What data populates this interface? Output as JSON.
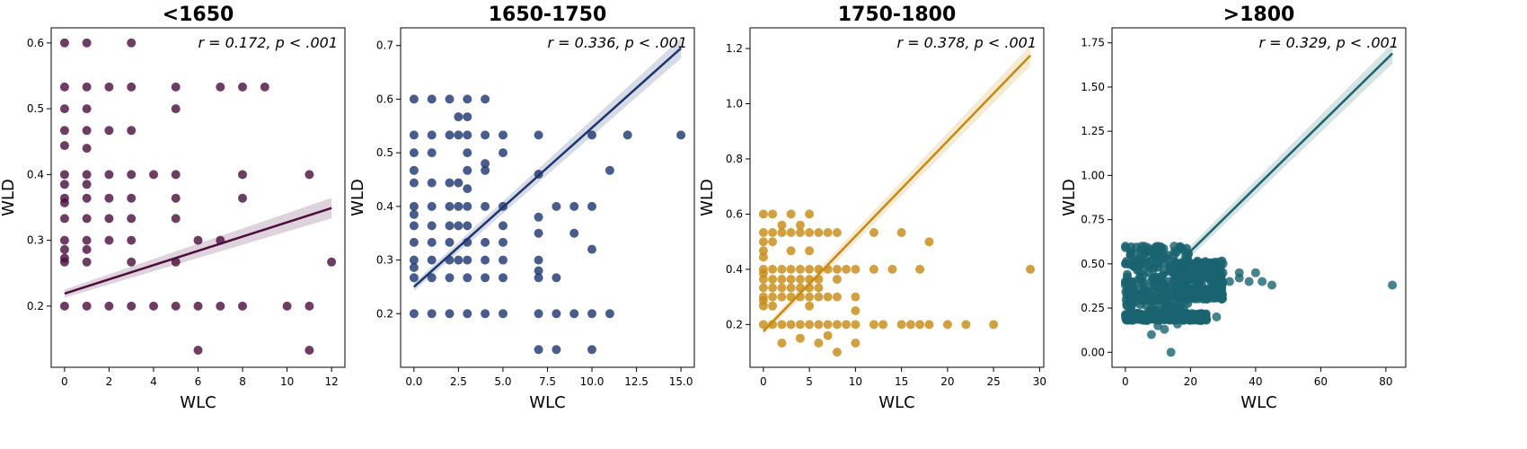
{
  "chart_data": [
    {
      "type": "scatter",
      "title": "<1650",
      "xlabel": "WLC",
      "ylabel": "WLD",
      "annotation": "r = 0.172, p < .001",
      "color": "#4a0d3c",
      "xlim": [
        -0.6,
        12.6
      ],
      "ylim": [
        0.107,
        0.623
      ],
      "xticks": [
        0,
        2,
        4,
        6,
        8,
        10,
        12
      ],
      "xtick_labels": [
        "0",
        "2",
        "4",
        "6",
        "8",
        "10",
        "12"
      ],
      "yticks": [
        0.2,
        0.3,
        0.4,
        0.5,
        0.6
      ],
      "ytick_labels": [
        "0.2",
        "0.3",
        "0.4",
        "0.5",
        "0.6"
      ],
      "regression": {
        "x": [
          0,
          12
        ],
        "y": [
          0.219,
          0.349
        ]
      },
      "points": [
        [
          0,
          0.6
        ],
        [
          0,
          0.533
        ],
        [
          0,
          0.5
        ],
        [
          0,
          0.467
        ],
        [
          0,
          0.444
        ],
        [
          0,
          0.4
        ],
        [
          0,
          0.385
        ],
        [
          0,
          0.364
        ],
        [
          0,
          0.357
        ],
        [
          0,
          0.333
        ],
        [
          0,
          0.3
        ],
        [
          0,
          0.286
        ],
        [
          0,
          0.273
        ],
        [
          0,
          0.267
        ],
        [
          0,
          0.2
        ],
        [
          1,
          0.6
        ],
        [
          1,
          0.533
        ],
        [
          1,
          0.5
        ],
        [
          1,
          0.467
        ],
        [
          1,
          0.44
        ],
        [
          1,
          0.4
        ],
        [
          1,
          0.385
        ],
        [
          1,
          0.364
        ],
        [
          1,
          0.333
        ],
        [
          1,
          0.3
        ],
        [
          1,
          0.286
        ],
        [
          1,
          0.267
        ],
        [
          1,
          0.2
        ],
        [
          2,
          0.533
        ],
        [
          2,
          0.467
        ],
        [
          2,
          0.4
        ],
        [
          2,
          0.364
        ],
        [
          2,
          0.333
        ],
        [
          2,
          0.3
        ],
        [
          2,
          0.2
        ],
        [
          3,
          0.6
        ],
        [
          3,
          0.533
        ],
        [
          3,
          0.467
        ],
        [
          3,
          0.4
        ],
        [
          3,
          0.364
        ],
        [
          3,
          0.333
        ],
        [
          3,
          0.3
        ],
        [
          3,
          0.267
        ],
        [
          3,
          0.2
        ],
        [
          4,
          0.4
        ],
        [
          4,
          0.2
        ],
        [
          5,
          0.533
        ],
        [
          5,
          0.5
        ],
        [
          5,
          0.4
        ],
        [
          5,
          0.364
        ],
        [
          5,
          0.333
        ],
        [
          5,
          0.267
        ],
        [
          5,
          0.2
        ],
        [
          6,
          0.3
        ],
        [
          6,
          0.2
        ],
        [
          6,
          0.133
        ],
        [
          7,
          0.533
        ],
        [
          7,
          0.3
        ],
        [
          7,
          0.2
        ],
        [
          8,
          0.533
        ],
        [
          8,
          0.4
        ],
        [
          8,
          0.364
        ],
        [
          8,
          0.2
        ],
        [
          9,
          0.533
        ],
        [
          10,
          0.2
        ],
        [
          11,
          0.4
        ],
        [
          11,
          0.2
        ],
        [
          11,
          0.133
        ],
        [
          12,
          0.267
        ]
      ]
    },
    {
      "type": "scatter",
      "title": "1650-1750",
      "xlabel": "WLC",
      "ylabel": "WLD",
      "annotation": "r = 0.336, p < .001",
      "color": "#1c3570",
      "xlim": [
        -0.75,
        15.75
      ],
      "ylim": [
        0.1,
        0.733
      ],
      "xticks": [
        0,
        2.5,
        5,
        7.5,
        10,
        12.5,
        15
      ],
      "xtick_labels": [
        "0.0",
        "2.5",
        "5.0",
        "7.5",
        "10.0",
        "12.5",
        "15.0"
      ],
      "yticks": [
        0.2,
        0.3,
        0.4,
        0.5,
        0.6,
        0.7
      ],
      "ytick_labels": [
        "0.2",
        "0.3",
        "0.4",
        "0.5",
        "0.6",
        "0.7"
      ],
      "regression": {
        "x": [
          0,
          15
        ],
        "y": [
          0.25,
          0.695
        ]
      },
      "points": [
        [
          0,
          0.6
        ],
        [
          0,
          0.533
        ],
        [
          0,
          0.5
        ],
        [
          0,
          0.467
        ],
        [
          0,
          0.444
        ],
        [
          0,
          0.4
        ],
        [
          0,
          0.385
        ],
        [
          0,
          0.364
        ],
        [
          0,
          0.333
        ],
        [
          0,
          0.3
        ],
        [
          0,
          0.286
        ],
        [
          0,
          0.267
        ],
        [
          0,
          0.2
        ],
        [
          1,
          0.6
        ],
        [
          1,
          0.533
        ],
        [
          1,
          0.5
        ],
        [
          1,
          0.444
        ],
        [
          1,
          0.4
        ],
        [
          1,
          0.364
        ],
        [
          1,
          0.333
        ],
        [
          1,
          0.3
        ],
        [
          1,
          0.267
        ],
        [
          1,
          0.2
        ],
        [
          2,
          0.6
        ],
        [
          2,
          0.533
        ],
        [
          2,
          0.444
        ],
        [
          2,
          0.4
        ],
        [
          2,
          0.364
        ],
        [
          2,
          0.333
        ],
        [
          2,
          0.3
        ],
        [
          2,
          0.267
        ],
        [
          2,
          0.2
        ],
        [
          2.5,
          0.567
        ],
        [
          2.5,
          0.533
        ],
        [
          2.5,
          0.444
        ],
        [
          2.5,
          0.4
        ],
        [
          2.5,
          0.364
        ],
        [
          2.5,
          0.3
        ],
        [
          3,
          0.6
        ],
        [
          3,
          0.567
        ],
        [
          3,
          0.533
        ],
        [
          3,
          0.5
        ],
        [
          3,
          0.467
        ],
        [
          3,
          0.433
        ],
        [
          3,
          0.4
        ],
        [
          3,
          0.364
        ],
        [
          3,
          0.333
        ],
        [
          3,
          0.3
        ],
        [
          3,
          0.267
        ],
        [
          3,
          0.2
        ],
        [
          4,
          0.6
        ],
        [
          4,
          0.533
        ],
        [
          4,
          0.48
        ],
        [
          4,
          0.467
        ],
        [
          4,
          0.4
        ],
        [
          4,
          0.333
        ],
        [
          4,
          0.3
        ],
        [
          4,
          0.267
        ],
        [
          4,
          0.2
        ],
        [
          5,
          0.533
        ],
        [
          5,
          0.5
        ],
        [
          5,
          0.4
        ],
        [
          5,
          0.364
        ],
        [
          5,
          0.333
        ],
        [
          5,
          0.3
        ],
        [
          5,
          0.267
        ],
        [
          5,
          0.2
        ],
        [
          7,
          0.533
        ],
        [
          7,
          0.46
        ],
        [
          7,
          0.38
        ],
        [
          7,
          0.35
        ],
        [
          7,
          0.3
        ],
        [
          7,
          0.28
        ],
        [
          7,
          0.267
        ],
        [
          7,
          0.2
        ],
        [
          7,
          0.133
        ],
        [
          8,
          0.4
        ],
        [
          8,
          0.267
        ],
        [
          8,
          0.2
        ],
        [
          8,
          0.133
        ],
        [
          9,
          0.4
        ],
        [
          9,
          0.35
        ],
        [
          9,
          0.2
        ],
        [
          10,
          0.533
        ],
        [
          10,
          0.4
        ],
        [
          10,
          0.32
        ],
        [
          10,
          0.2
        ],
        [
          10,
          0.133
        ],
        [
          11,
          0.467
        ],
        [
          11,
          0.2
        ],
        [
          12,
          0.533
        ],
        [
          15,
          0.533
        ]
      ]
    },
    {
      "type": "scatter",
      "title": "1750-1800",
      "xlabel": "WLC",
      "ylabel": "WLD",
      "annotation": "r = 0.378, p < .001",
      "color": "#c68a12",
      "xlim": [
        -1.45,
        30.45
      ],
      "ylim": [
        0.045,
        1.275
      ],
      "xticks": [
        0,
        5,
        10,
        15,
        20,
        25,
        30
      ],
      "xtick_labels": [
        "0",
        "5",
        "10",
        "15",
        "20",
        "25",
        "30"
      ],
      "yticks": [
        0.2,
        0.4,
        0.6,
        0.8,
        1.0,
        1.2
      ],
      "ytick_labels": [
        "0.2",
        "0.4",
        "0.6",
        "0.8",
        "1.0",
        "1.2"
      ],
      "regression": {
        "x": [
          0,
          29
        ],
        "y": [
          0.175,
          1.175
        ]
      },
      "points": [
        [
          0,
          0.6
        ],
        [
          0,
          0.533
        ],
        [
          0,
          0.5
        ],
        [
          0,
          0.467
        ],
        [
          0,
          0.444
        ],
        [
          0,
          0.4
        ],
        [
          0,
          0.385
        ],
        [
          0,
          0.364
        ],
        [
          0,
          0.333
        ],
        [
          0,
          0.3
        ],
        [
          0,
          0.286
        ],
        [
          0,
          0.267
        ],
        [
          0,
          0.2
        ],
        [
          1,
          0.6
        ],
        [
          1,
          0.533
        ],
        [
          1,
          0.5
        ],
        [
          1,
          0.4
        ],
        [
          1,
          0.364
        ],
        [
          1,
          0.333
        ],
        [
          1,
          0.3
        ],
        [
          1,
          0.267
        ],
        [
          1,
          0.2
        ],
        [
          2,
          0.56
        ],
        [
          2,
          0.533
        ],
        [
          2,
          0.4
        ],
        [
          2,
          0.364
        ],
        [
          2,
          0.333
        ],
        [
          2,
          0.3
        ],
        [
          2,
          0.2
        ],
        [
          2,
          0.133
        ],
        [
          3,
          0.6
        ],
        [
          3,
          0.533
        ],
        [
          3,
          0.467
        ],
        [
          3,
          0.4
        ],
        [
          3,
          0.364
        ],
        [
          3,
          0.333
        ],
        [
          3,
          0.3
        ],
        [
          3,
          0.2
        ],
        [
          4,
          0.56
        ],
        [
          4,
          0.533
        ],
        [
          4,
          0.4
        ],
        [
          4,
          0.364
        ],
        [
          4,
          0.333
        ],
        [
          4,
          0.3
        ],
        [
          4,
          0.2
        ],
        [
          4,
          0.15
        ],
        [
          5,
          0.6
        ],
        [
          5,
          0.533
        ],
        [
          5,
          0.467
        ],
        [
          5,
          0.4
        ],
        [
          5,
          0.364
        ],
        [
          5,
          0.333
        ],
        [
          5,
          0.3
        ],
        [
          5,
          0.267
        ],
        [
          5,
          0.2
        ],
        [
          6,
          0.533
        ],
        [
          6,
          0.4
        ],
        [
          6,
          0.364
        ],
        [
          6,
          0.333
        ],
        [
          6,
          0.3
        ],
        [
          6,
          0.2
        ],
        [
          6,
          0.133
        ],
        [
          7,
          0.533
        ],
        [
          7,
          0.4
        ],
        [
          7,
          0.3
        ],
        [
          7,
          0.2
        ],
        [
          7,
          0.16
        ],
        [
          8,
          0.533
        ],
        [
          8,
          0.4
        ],
        [
          8,
          0.364
        ],
        [
          8,
          0.3
        ],
        [
          8,
          0.2
        ],
        [
          8,
          0.1
        ],
        [
          9,
          0.4
        ],
        [
          9,
          0.2
        ],
        [
          10,
          0.4
        ],
        [
          10,
          0.3
        ],
        [
          10,
          0.25
        ],
        [
          10,
          0.2
        ],
        [
          10,
          0.133
        ],
        [
          12,
          0.533
        ],
        [
          12,
          0.4
        ],
        [
          12,
          0.2
        ],
        [
          13,
          0.2
        ],
        [
          14,
          0.4
        ],
        [
          15,
          0.533
        ],
        [
          15,
          0.2
        ],
        [
          16,
          0.2
        ],
        [
          17,
          0.4
        ],
        [
          17,
          0.2
        ],
        [
          18,
          0.5
        ],
        [
          18,
          0.2
        ],
        [
          20,
          0.2
        ],
        [
          22,
          0.2
        ],
        [
          25,
          0.2
        ],
        [
          29,
          0.4
        ]
      ]
    },
    {
      "type": "scatter",
      "title": ">1800",
      "xlabel": "WLC",
      "ylabel": "WLD",
      "annotation": "r = 0.329, p < .001",
      "color": "#1a6370",
      "xlim": [
        -4.1,
        86.1
      ],
      "ylim": [
        -0.085,
        1.835
      ],
      "xticks": [
        0,
        20,
        40,
        60,
        80
      ],
      "xtick_labels": [
        "0",
        "20",
        "40",
        "60",
        "80"
      ],
      "yticks": [
        0,
        0.25,
        0.5,
        0.75,
        1.0,
        1.25,
        1.5,
        1.75
      ],
      "ytick_labels": [
        "0.00",
        "0.25",
        "0.50",
        "0.75",
        "1.00",
        "1.25",
        "1.50",
        "1.75"
      ],
      "regression": {
        "x": [
          0,
          82
        ],
        "y": [
          0.21,
          1.69
        ]
      },
      "points": [
        [
          0,
          0.6
        ],
        [
          0,
          0.5
        ],
        [
          0,
          0.4
        ],
        [
          0,
          0.2
        ],
        [
          5,
          0.6
        ],
        [
          10,
          0.6
        ],
        [
          15,
          0.6
        ],
        [
          20,
          0.5
        ],
        [
          22,
          0.45
        ],
        [
          25,
          0.5
        ],
        [
          28,
          0.4
        ],
        [
          28,
          0.2
        ],
        [
          30,
          0.5
        ],
        [
          30,
          0.45
        ],
        [
          32,
          0.4
        ],
        [
          35,
          0.45
        ],
        [
          35,
          0.42
        ],
        [
          38,
          0.4
        ],
        [
          40,
          0.45
        ],
        [
          42,
          0.4
        ],
        [
          45,
          0.38
        ],
        [
          8,
          0.1
        ],
        [
          10,
          0.15
        ],
        [
          12,
          0.13
        ],
        [
          14,
          0.0
        ],
        [
          16,
          0.16
        ],
        [
          82,
          0.38
        ]
      ],
      "dense_clusters": [
        {
          "x": [
            0,
            20
          ],
          "y": [
            0.2,
            0.6
          ]
        },
        {
          "x": [
            15,
            30
          ],
          "y": [
            0.3,
            0.52
          ]
        },
        {
          "x": [
            0,
            25
          ],
          "y": [
            0.18,
            0.22
          ]
        }
      ]
    }
  ]
}
